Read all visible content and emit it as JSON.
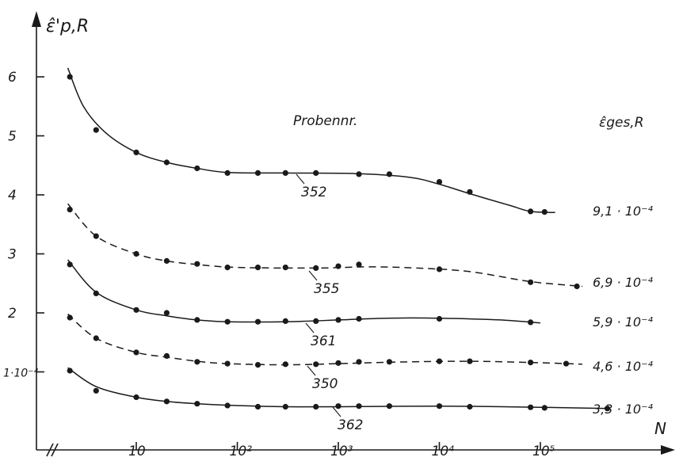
{
  "chart_data": {
    "type": "line",
    "y_axis_label": "ε̂'p,R",
    "x_axis_label": "N",
    "x_scale": "log",
    "y_ticks": [
      "1·10⁻⁴",
      "2",
      "3",
      "4",
      "5",
      "6"
    ],
    "x_ticks": [
      "10",
      "10²",
      "10³",
      "10⁴",
      "10⁵"
    ],
    "legend_title": "Probennr.",
    "right_header": "ε̂ges,R",
    "series": [
      {
        "name": "352",
        "style": "solid",
        "ges_label": "9,1 · 10⁻⁴",
        "points": [
          [
            2.2,
            6.0
          ],
          [
            4,
            5.1
          ],
          [
            10,
            4.72
          ],
          [
            20,
            4.55
          ],
          [
            40,
            4.45
          ],
          [
            80,
            4.37
          ],
          [
            160,
            4.37
          ],
          [
            300,
            4.37
          ],
          [
            600,
            4.37
          ],
          [
            1600,
            4.35
          ],
          [
            3200,
            4.35
          ],
          [
            10000,
            4.22
          ],
          [
            20000,
            4.05
          ],
          [
            80000,
            3.72
          ],
          [
            110000,
            3.71
          ]
        ],
        "curve": [
          [
            2.1,
            6.15
          ],
          [
            3,
            5.5
          ],
          [
            5,
            5.05
          ],
          [
            10,
            4.72
          ],
          [
            20,
            4.55
          ],
          [
            40,
            4.45
          ],
          [
            80,
            4.38
          ],
          [
            300,
            4.37
          ],
          [
            1500,
            4.36
          ],
          [
            5000,
            4.3
          ],
          [
            10000,
            4.18
          ],
          [
            20000,
            4.02
          ],
          [
            50000,
            3.82
          ],
          [
            80000,
            3.72
          ],
          [
            140000,
            3.7
          ]
        ]
      },
      {
        "name": "355",
        "style": "dashed",
        "ges_label": "6,9 · 10⁻⁴",
        "points": [
          [
            2.2,
            3.75
          ],
          [
            4,
            3.3
          ],
          [
            10,
            3.0
          ],
          [
            20,
            2.88
          ],
          [
            40,
            2.83
          ],
          [
            80,
            2.77
          ],
          [
            160,
            2.77
          ],
          [
            300,
            2.77
          ],
          [
            600,
            2.76
          ],
          [
            1000,
            2.79
          ],
          [
            1600,
            2.82
          ],
          [
            10000,
            2.74
          ],
          [
            80000,
            2.52
          ],
          [
            230000,
            2.45
          ]
        ],
        "curve": [
          [
            2.1,
            3.85
          ],
          [
            4,
            3.3
          ],
          [
            10,
            3.0
          ],
          [
            20,
            2.88
          ],
          [
            40,
            2.82
          ],
          [
            100,
            2.77
          ],
          [
            600,
            2.76
          ],
          [
            2000,
            2.78
          ],
          [
            6000,
            2.76
          ],
          [
            20000,
            2.7
          ],
          [
            80000,
            2.53
          ],
          [
            260000,
            2.45
          ]
        ]
      },
      {
        "name": "361",
        "style": "solid",
        "ges_label": "5,9 · 10⁻⁴",
        "points": [
          [
            2.2,
            2.82
          ],
          [
            4,
            2.33
          ],
          [
            10,
            2.05
          ],
          [
            20,
            2.0
          ],
          [
            40,
            1.88
          ],
          [
            80,
            1.85
          ],
          [
            160,
            1.85
          ],
          [
            300,
            1.86
          ],
          [
            600,
            1.86
          ],
          [
            1000,
            1.88
          ],
          [
            1600,
            1.9
          ],
          [
            10000,
            1.9
          ],
          [
            80000,
            1.84
          ]
        ],
        "curve": [
          [
            2.1,
            2.9
          ],
          [
            4,
            2.35
          ],
          [
            10,
            2.05
          ],
          [
            20,
            1.95
          ],
          [
            40,
            1.88
          ],
          [
            80,
            1.85
          ],
          [
            300,
            1.85
          ],
          [
            1000,
            1.88
          ],
          [
            3000,
            1.91
          ],
          [
            10000,
            1.91
          ],
          [
            40000,
            1.88
          ],
          [
            100000,
            1.83
          ]
        ]
      },
      {
        "name": "350",
        "style": "dashed",
        "ges_label": "4,6 · 10⁻⁴",
        "points": [
          [
            2.2,
            1.92
          ],
          [
            4,
            1.57
          ],
          [
            10,
            1.33
          ],
          [
            20,
            1.27
          ],
          [
            40,
            1.17
          ],
          [
            80,
            1.14
          ],
          [
            160,
            1.12
          ],
          [
            300,
            1.13
          ],
          [
            600,
            1.13
          ],
          [
            1000,
            1.15
          ],
          [
            1600,
            1.17
          ],
          [
            3200,
            1.17
          ],
          [
            10000,
            1.18
          ],
          [
            20000,
            1.18
          ],
          [
            80000,
            1.16
          ],
          [
            180000,
            1.14
          ]
        ],
        "curve": [
          [
            2.1,
            1.98
          ],
          [
            4,
            1.57
          ],
          [
            10,
            1.33
          ],
          [
            20,
            1.25
          ],
          [
            40,
            1.18
          ],
          [
            80,
            1.14
          ],
          [
            300,
            1.12
          ],
          [
            1000,
            1.14
          ],
          [
            5000,
            1.17
          ],
          [
            20000,
            1.18
          ],
          [
            80000,
            1.16
          ],
          [
            260000,
            1.13
          ]
        ]
      },
      {
        "name": "362",
        "style": "solid",
        "ges_label": "3,3 · 10⁻⁴",
        "points": [
          [
            2.2,
            1.02
          ],
          [
            4,
            0.68
          ],
          [
            10,
            0.57
          ],
          [
            20,
            0.5
          ],
          [
            40,
            0.46
          ],
          [
            80,
            0.43
          ],
          [
            160,
            0.41
          ],
          [
            300,
            0.41
          ],
          [
            600,
            0.41
          ],
          [
            1000,
            0.42
          ],
          [
            1600,
            0.42
          ],
          [
            3200,
            0.42
          ],
          [
            10000,
            0.42
          ],
          [
            20000,
            0.41
          ],
          [
            80000,
            0.4
          ],
          [
            110000,
            0.39
          ],
          [
            460000,
            0.38
          ]
        ],
        "curve": [
          [
            2.1,
            1.07
          ],
          [
            4,
            0.75
          ],
          [
            10,
            0.57
          ],
          [
            20,
            0.5
          ],
          [
            40,
            0.46
          ],
          [
            100,
            0.43
          ],
          [
            300,
            0.41
          ],
          [
            1000,
            0.41
          ],
          [
            10000,
            0.42
          ],
          [
            100000,
            0.4
          ],
          [
            480000,
            0.38
          ]
        ]
      }
    ]
  }
}
